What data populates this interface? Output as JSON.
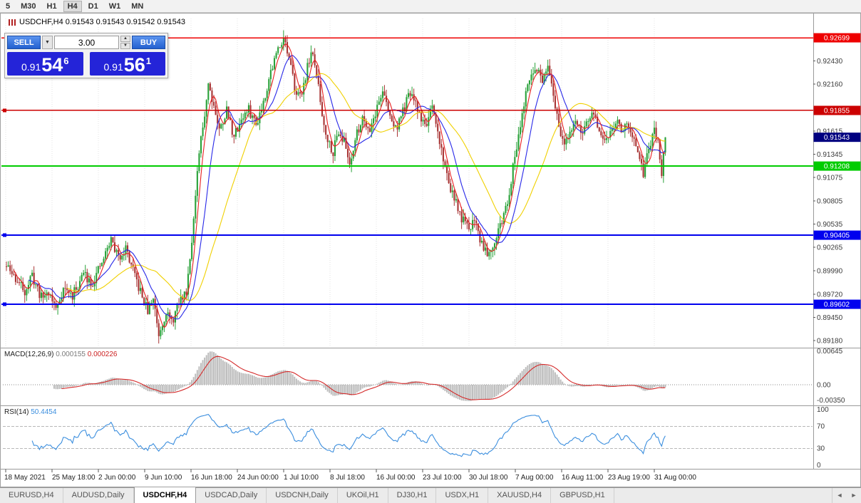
{
  "toolbar": {
    "periods": [
      "5",
      "M30",
      "H1",
      "H4",
      "D1",
      "W1",
      "MN"
    ],
    "active_period": "H4"
  },
  "chart": {
    "title": "USDCHF,H4 0.91543 0.91543 0.91542 0.91543"
  },
  "trade_panel": {
    "sell_label": "SELL",
    "buy_label": "BUY",
    "volume": "3.00",
    "bid": {
      "prefix": "0.91",
      "big": "54",
      "sup": "6"
    },
    "ask": {
      "prefix": "0.91",
      "big": "56",
      "sup": "1"
    }
  },
  "icons": {
    "caret_down": "▼",
    "spin_up": "▲",
    "spin_down": "▼",
    "scroll_left": "◄",
    "scroll_right": "►"
  },
  "tabs": {
    "items": [
      "EURUSD,H4",
      "AUDUSD,Daily",
      "USDCHF,H4",
      "USDCAD,Daily",
      "USDCNH,Daily",
      "UKOil,H1",
      "DJ30,H1",
      "USDX,H1",
      "XAUUSD,H4",
      "GBPUSD,H1"
    ],
    "active": "USDCHF,H4"
  },
  "chart_data": {
    "type": "candlestick",
    "symbol": "USDCHF",
    "timeframe": "H4",
    "current_price": 0.91543,
    "price_view": {
      "top": 0.92923,
      "bottom": 0.89114
    },
    "y_ticks": [
      0.9243,
      0.9216,
      0.91615,
      0.91345,
      0.91075,
      0.90805,
      0.90535,
      0.90265,
      0.8999,
      0.8972,
      0.8945,
      0.8918
    ],
    "h_lines": [
      {
        "price": 0.92699,
        "color": "#ee0000",
        "w": 1.5,
        "marker": false
      },
      {
        "price": 0.91855,
        "color": "#cc0000",
        "w": 1.5,
        "marker": true
      },
      {
        "price": 0.91208,
        "color": "#00cc00",
        "w": 2,
        "marker": false
      },
      {
        "price": 0.90405,
        "color": "#0000ee",
        "w": 2,
        "marker": true
      },
      {
        "price": 0.89602,
        "color": "#0000ee",
        "w": 2,
        "marker": true
      }
    ],
    "x_labels": [
      "18 May 2021",
      "25 May 18:00",
      "2 Jun 00:00",
      "9 Jun 10:00",
      "16 Jun 18:00",
      "24 Jun 00:00",
      "1 Jul 10:00",
      "8 Jul 18:00",
      "16 Jul 00:00",
      "23 Jul 10:00",
      "30 Jul 18:00",
      "7 Aug 00:00",
      "16 Aug 11:00",
      "23 Aug 19:00",
      "31 Aug 00:00"
    ],
    "candle_count": 360,
    "noise_seed": 11,
    "noise": 0.0012,
    "wick": 0.0009,
    "up_color": "#28a138",
    "down_color": "#a83434",
    "price_anchors": [
      [
        0,
        0.9004
      ],
      [
        5,
        0.899
      ],
      [
        10,
        0.8976
      ],
      [
        14,
        0.8993
      ],
      [
        19,
        0.8968
      ],
      [
        23,
        0.8975
      ],
      [
        27,
        0.8955
      ],
      [
        31,
        0.8979
      ],
      [
        36,
        0.897
      ],
      [
        42,
        0.8996
      ],
      [
        47,
        0.8985
      ],
      [
        52,
        0.9008
      ],
      [
        57,
        0.9036
      ],
      [
        61,
        0.9014
      ],
      [
        65,
        0.9026
      ],
      [
        69,
        0.8998
      ],
      [
        73,
        0.8974
      ],
      [
        77,
        0.8952
      ],
      [
        80,
        0.8968
      ],
      [
        83,
        0.8926
      ],
      [
        87,
        0.8952
      ],
      [
        90,
        0.8938
      ],
      [
        94,
        0.8962
      ],
      [
        98,
        0.8976
      ],
      [
        102,
        0.9058
      ],
      [
        105,
        0.9135
      ],
      [
        108,
        0.9182
      ],
      [
        110,
        0.9218
      ],
      [
        113,
        0.9192
      ],
      [
        116,
        0.9162
      ],
      [
        120,
        0.9186
      ],
      [
        124,
        0.9155
      ],
      [
        128,
        0.9176
      ],
      [
        132,
        0.9186
      ],
      [
        136,
        0.917
      ],
      [
        140,
        0.9196
      ],
      [
        144,
        0.9231
      ],
      [
        148,
        0.9257
      ],
      [
        151,
        0.9272
      ],
      [
        154,
        0.9243
      ],
      [
        157,
        0.9214
      ],
      [
        160,
        0.92
      ],
      [
        163,
        0.9226
      ],
      [
        166,
        0.9254
      ],
      [
        169,
        0.9228
      ],
      [
        172,
        0.918
      ],
      [
        175,
        0.9152
      ],
      [
        178,
        0.9138
      ],
      [
        181,
        0.9163
      ],
      [
        184,
        0.9149
      ],
      [
        187,
        0.9124
      ],
      [
        190,
        0.9151
      ],
      [
        194,
        0.9178
      ],
      [
        198,
        0.9164
      ],
      [
        202,
        0.9189
      ],
      [
        205,
        0.9209
      ],
      [
        208,
        0.9184
      ],
      [
        212,
        0.9164
      ],
      [
        216,
        0.9184
      ],
      [
        220,
        0.9206
      ],
      [
        224,
        0.9186
      ],
      [
        228,
        0.9168
      ],
      [
        232,
        0.9186
      ],
      [
        236,
        0.915
      ],
      [
        240,
        0.911
      ],
      [
        244,
        0.9082
      ],
      [
        248,
        0.906
      ],
      [
        252,
        0.9046
      ],
      [
        255,
        0.9062
      ],
      [
        258,
        0.9036
      ],
      [
        262,
        0.9021
      ],
      [
        265,
        0.903
      ],
      [
        268,
        0.9046
      ],
      [
        271,
        0.9062
      ],
      [
        274,
        0.9092
      ],
      [
        277,
        0.9132
      ],
      [
        280,
        0.9172
      ],
      [
        283,
        0.9202
      ],
      [
        286,
        0.9226
      ],
      [
        289,
        0.9236
      ],
      [
        292,
        0.9218
      ],
      [
        295,
        0.9233
      ],
      [
        298,
        0.92
      ],
      [
        301,
        0.917
      ],
      [
        304,
        0.9141
      ],
      [
        307,
        0.9161
      ],
      [
        310,
        0.9176
      ],
      [
        313,
        0.9156
      ],
      [
        316,
        0.9171
      ],
      [
        320,
        0.9181
      ],
      [
        323,
        0.9161
      ],
      [
        326,
        0.9146
      ],
      [
        329,
        0.9161
      ],
      [
        332,
        0.9176
      ],
      [
        335,
        0.9161
      ],
      [
        338,
        0.9176
      ],
      [
        341,
        0.9156
      ],
      [
        344,
        0.9131
      ],
      [
        347,
        0.9112
      ],
      [
        350,
        0.9141
      ],
      [
        353,
        0.9161
      ],
      [
        355,
        0.9146
      ],
      [
        357,
        0.9113
      ],
      [
        359,
        0.91543
      ]
    ],
    "ma": {
      "fast_period": 5,
      "mid_period": 13,
      "slow_period": 34,
      "fast_color": "#e82020",
      "mid_color": "#2828e8",
      "slow_color": "#f0d000"
    },
    "macd": {
      "label": "MACD(12,26,9)",
      "value_main": "0.000155",
      "value_signal": "0.000226",
      "axis_labels": [
        "0.00645",
        "0.00",
        "-0.00350"
      ],
      "range": [
        -0.0035,
        0.00645
      ],
      "fast": 12,
      "slow": 26,
      "signal": 9,
      "hist_color": "#bdbdbd",
      "signal_color": "#d42a2a"
    },
    "rsi": {
      "label": "RSI(14)",
      "value": "50.4454",
      "period": 14,
      "axis_labels": [
        100,
        70,
        30,
        0
      ],
      "dashed_levels": [
        70,
        30
      ],
      "color": "#3b8ede"
    }
  }
}
